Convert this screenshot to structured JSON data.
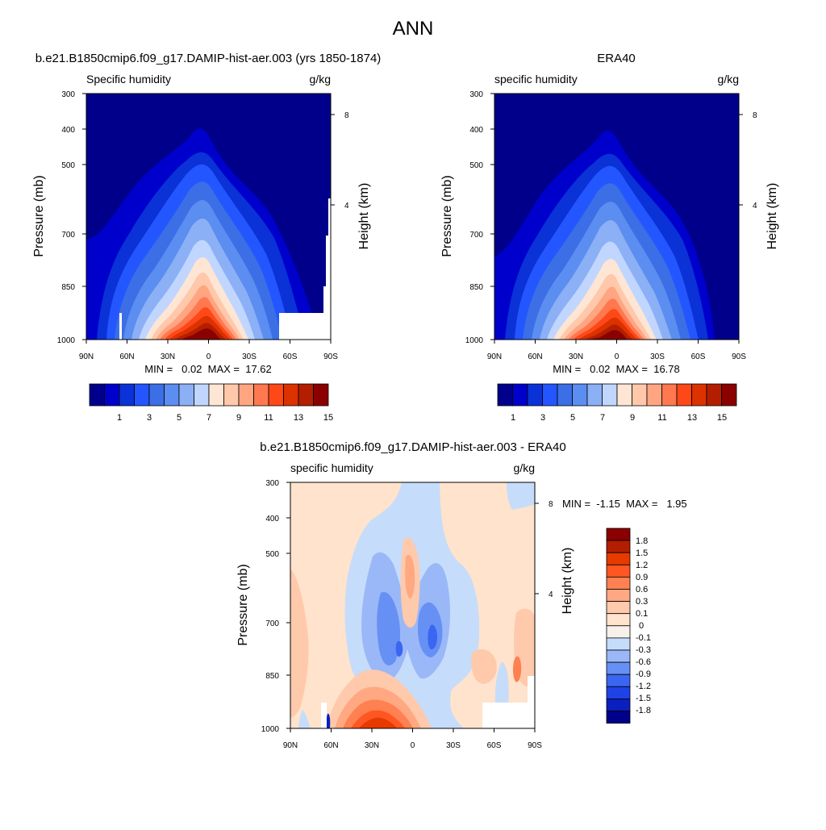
{
  "page": {
    "title": "ANN"
  },
  "palette_main": [
    "#00008b",
    "#0000cd",
    "#0a32d7",
    "#2356ff",
    "#3c6ee6",
    "#5b8ef0",
    "#8cb0f5",
    "#c0d6ff",
    "#ffe6d4",
    "#ffc8aa",
    "#ffa582",
    "#ff7850",
    "#ff4818",
    "#dc3200",
    "#b41e00",
    "#8b0000"
  ],
  "palette_diff": [
    "#00008b",
    "#0a1fbe",
    "#1f42e6",
    "#3a66f2",
    "#6790f4",
    "#9ab8f7",
    "#c6dcfb",
    "#f8f1ea",
    "#ffe3cc",
    "#ffc9ac",
    "#ffa882",
    "#ff8050",
    "#ff5622",
    "#e63a00",
    "#b41e00",
    "#8b0000"
  ],
  "chart_data": [
    {
      "type": "contour",
      "title": "b.e21.B1850cmip6.f09_g17.DAMIP-hist-aer.003 (yrs 1850-1874)",
      "left_label": "Specific humidity",
      "units": "g/kg",
      "ylabel": "Pressure (mb)",
      "y2label": "Height (km)",
      "x_ticks": [
        "90N",
        "60N",
        "30N",
        "0",
        "30S",
        "60S",
        "90S"
      ],
      "y_ticks": [
        "300",
        "400",
        "500",
        "700",
        "850",
        "1000"
      ],
      "y2_ticks": [
        "8",
        "4"
      ],
      "stats": "MIN =   0.02  MAX =  17.62",
      "colorbar_labels": [
        "1",
        "3",
        "5",
        "7",
        "9",
        "11",
        "13",
        "15"
      ],
      "min": 0.02,
      "max": 17.62
    },
    {
      "type": "contour",
      "title": "ERA40",
      "left_label": "specific humidity",
      "units": "g/kg",
      "ylabel": "Pressure (mb)",
      "y2label": "Height (km)",
      "x_ticks": [
        "90N",
        "60N",
        "30N",
        "0",
        "30S",
        "60S",
        "90S"
      ],
      "y_ticks": [
        "300",
        "400",
        "500",
        "700",
        "850",
        "1000"
      ],
      "y2_ticks": [
        "8",
        "4"
      ],
      "stats": "MIN =   0.02  MAX =  16.78",
      "colorbar_labels": [
        "1",
        "3",
        "5",
        "7",
        "9",
        "11",
        "13",
        "15"
      ],
      "min": 0.02,
      "max": 16.78
    },
    {
      "type": "contour",
      "title": "b.e21.B1850cmip6.f09_g17.DAMIP-hist-aer.003 - ERA40",
      "left_label": "specific humidity",
      "units": "g/kg",
      "ylabel": "Pressure (mb)",
      "y2label": "Height (km)",
      "x_ticks": [
        "90N",
        "60N",
        "30N",
        "0",
        "30S",
        "60S",
        "90S"
      ],
      "y_ticks": [
        "300",
        "400",
        "500",
        "700",
        "850",
        "1000"
      ],
      "y2_ticks": [
        "8",
        "4"
      ],
      "stats": "MIN =  -1.15  MAX =   1.95",
      "colorbar_labels": [
        "1.8",
        "1.5",
        "1.2",
        "0.9",
        "0.6",
        "0.3",
        "0.1",
        "0",
        "-0.1",
        "-0.3",
        "-0.6",
        "-0.9",
        "-1.2",
        "-1.5",
        "-1.8"
      ],
      "min": -1.15,
      "max": 1.95
    }
  ]
}
